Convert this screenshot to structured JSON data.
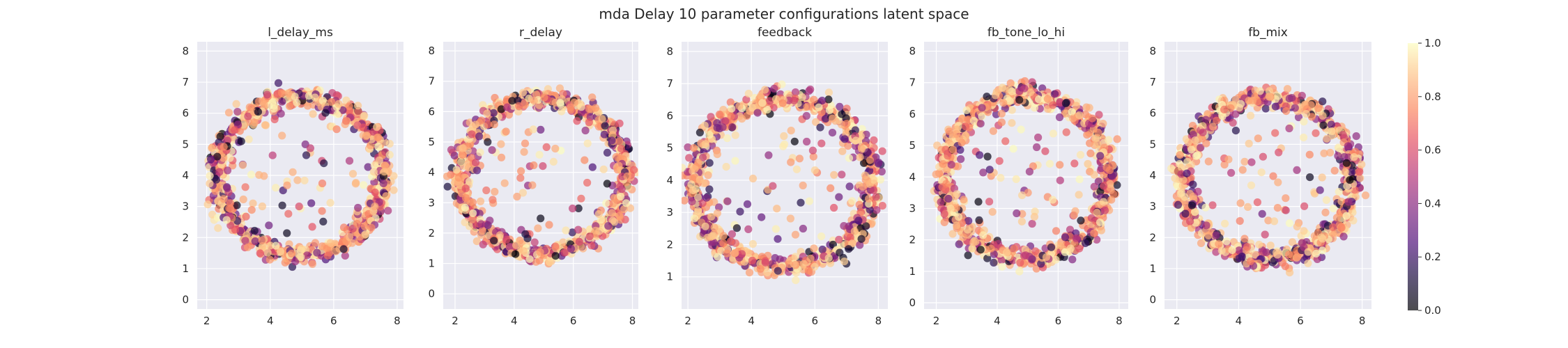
{
  "figure": {
    "title": "mda Delay 10 parameter configurations latent space",
    "background": "#ffffff",
    "axes_facecolor": "#eaeaf2",
    "grid_color": "#ffffff"
  },
  "chart_data": [
    {
      "type": "scatter",
      "title": "l_delay_ms",
      "xlabel": "",
      "ylabel": "",
      "xlim": [
        1.7,
        8.2
      ],
      "ylim": [
        -0.3,
        8.3
      ],
      "xticks": [
        2,
        4,
        6,
        8
      ],
      "yticks": [
        0,
        1,
        2,
        3,
        4,
        5,
        6,
        7,
        8
      ],
      "grid": true,
      "ring": {
        "center": [
          4.95,
          4.0
        ],
        "radius_x": 2.6,
        "radius_y": 2.55,
        "thickness": 0.42,
        "n_points": 900
      },
      "interior_points": 55
    },
    {
      "type": "scatter",
      "title": "r_delay",
      "xlabel": "",
      "ylabel": "",
      "xlim": [
        1.6,
        8.2
      ],
      "ylim": [
        -0.5,
        8.3
      ],
      "xticks": [
        2,
        4,
        6,
        8
      ],
      "yticks": [
        0,
        1,
        2,
        3,
        4,
        5,
        6,
        7,
        8
      ],
      "grid": true,
      "ring": {
        "center": [
          4.95,
          3.9
        ],
        "radius_x": 2.8,
        "radius_y": 2.55,
        "thickness": 0.42,
        "n_points": 900
      },
      "interior_points": 60
    },
    {
      "type": "scatter",
      "title": "feedback",
      "xlabel": "",
      "ylabel": "",
      "xlim": [
        1.8,
        8.3
      ],
      "ylim": [
        0.0,
        8.3
      ],
      "xticks": [
        2,
        4,
        6,
        8
      ],
      "yticks": [
        1,
        2,
        3,
        4,
        5,
        6,
        7,
        8
      ],
      "grid": true,
      "ring": {
        "center": [
          5.0,
          3.9
        ],
        "radius_x": 2.8,
        "radius_y": 2.6,
        "thickness": 0.45,
        "n_points": 900
      },
      "interior_points": 60
    },
    {
      "type": "scatter",
      "title": "fb_tone_lo_hi",
      "xlabel": "",
      "ylabel": "",
      "xlim": [
        1.6,
        8.3
      ],
      "ylim": [
        -0.2,
        8.3
      ],
      "xticks": [
        2,
        4,
        6,
        8
      ],
      "yticks": [
        0,
        1,
        2,
        3,
        4,
        5,
        6,
        7,
        8
      ],
      "grid": true,
      "ring": {
        "center": [
          4.95,
          4.0
        ],
        "radius_x": 2.7,
        "radius_y": 2.6,
        "thickness": 0.45,
        "n_points": 900
      },
      "interior_points": 60
    },
    {
      "type": "scatter",
      "title": "fb_mix",
      "xlabel": "",
      "ylabel": "",
      "xlim": [
        1.6,
        8.3
      ],
      "ylim": [
        -0.3,
        8.3
      ],
      "xticks": [
        2,
        4,
        6,
        8
      ],
      "yticks": [
        0,
        1,
        2,
        3,
        4,
        5,
        6,
        7,
        8
      ],
      "grid": true,
      "ring": {
        "center": [
          4.95,
          3.9
        ],
        "radius_x": 2.75,
        "radius_y": 2.6,
        "thickness": 0.45,
        "n_points": 900
      },
      "interior_points": 60
    }
  ],
  "colorbar": {
    "colormap": "magma",
    "range": [
      0.0,
      1.0
    ],
    "ticks": [
      "0.0",
      "0.2",
      "0.4",
      "0.6",
      "0.8",
      "1.0"
    ],
    "point_alpha": 0.7
  }
}
